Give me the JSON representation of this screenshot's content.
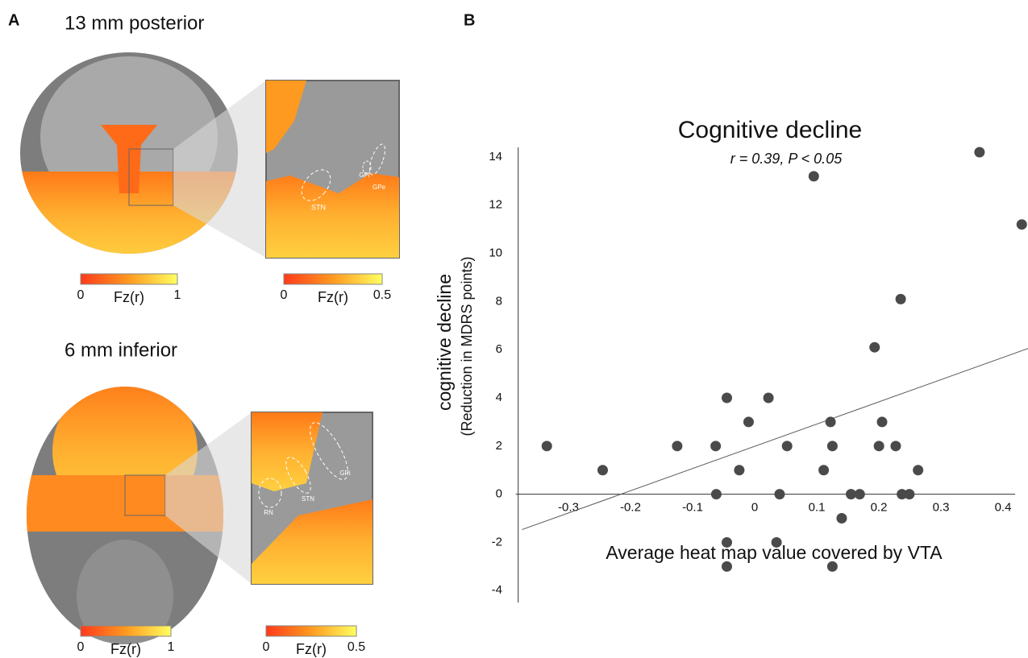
{
  "panel_a": {
    "label": "A",
    "top": {
      "title": "13 mm posterior",
      "regions": [
        "STN",
        "GPi",
        "GPe"
      ],
      "colorbars": [
        {
          "min": 0,
          "label": "Fz(r)",
          "max": 1
        },
        {
          "min": 0,
          "label": "Fz(r)",
          "max": 0.5
        }
      ]
    },
    "bottom": {
      "title": "6 mm inferior",
      "regions": [
        "GPi",
        "STN",
        "RN"
      ],
      "colorbars": [
        {
          "min": 0,
          "label": "Fz(r)",
          "max": 1
        },
        {
          "min": 0,
          "label": "Fz(r)",
          "max": 0.5
        }
      ]
    }
  },
  "chart_data": {
    "type": "scatter",
    "panel_label": "B",
    "title": "Cognitive decline",
    "subtitle": "r = 0.39, P < 0.05",
    "xlabel": "Average heat map value covered by VTA",
    "ylabel": "cognitive decline",
    "ylabel_sub": "(Reduction in MDRS points)",
    "color": "#4a4a4a",
    "x": [
      -0.34,
      -0.25,
      -0.13,
      -0.068,
      -0.067,
      -0.05,
      -0.05,
      -0.05,
      -0.03,
      -0.015,
      0.017,
      0.03,
      0.035,
      0.047,
      0.09,
      0.106,
      0.117,
      0.12,
      0.12,
      0.135,
      0.15,
      0.164,
      0.188,
      0.195,
      0.2,
      0.222,
      0.23,
      0.232,
      0.244,
      0.258,
      0.357,
      0.425
    ],
    "y": [
      2,
      1,
      2,
      2,
      0,
      4,
      -2,
      -3,
      1,
      3,
      4,
      -2,
      0,
      2,
      13.2,
      1,
      3,
      2,
      -3,
      -1,
      0,
      0,
      6.1,
      2,
      3,
      2,
      8.1,
      0,
      0,
      1,
      14.2,
      11.2
    ],
    "fit": {
      "x": [
        -0.38,
        0.435
      ],
      "y": [
        -1.47,
        6.05
      ]
    },
    "xlim": [
      -0.39,
      0.43
    ],
    "ylim": [
      -4.5,
      14.4
    ],
    "xticks": [
      -0.3,
      -0.2,
      -0.1,
      0,
      0.1,
      0.2,
      0.3,
      0.4
    ],
    "yticks": [
      -4,
      -2,
      0,
      2,
      4,
      6,
      8,
      10,
      12,
      14
    ]
  }
}
